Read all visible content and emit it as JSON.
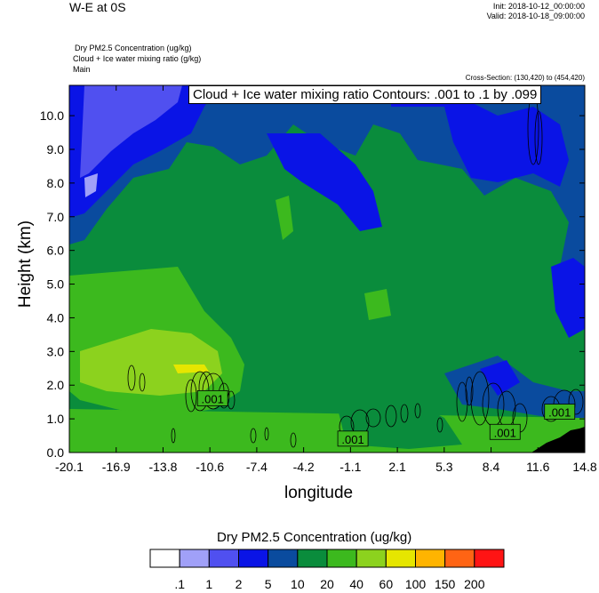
{
  "header": {
    "title": "W-E at 0S",
    "init": "Init: 2018-10-12_00:00:00",
    "valid": "Valid: 2018-10-18_09:00:00",
    "subtitle_1": "Dry PM2.5 Concentration   (ug/kg)",
    "subtitle_2": "Cloud + Ice water mixing ratio   (g/kg)",
    "subtitle_3": "Main",
    "cross_section": "Cross-Section: (130,420) to (454,420)",
    "contour_info": "Cloud + Ice water mixing ratio Contours: .001 to .1 by .099"
  },
  "chart_data": {
    "type": "heatmap",
    "xlabel": "longitude",
    "ylabel": "Height (km)",
    "xlim": [
      -20.1,
      14.8
    ],
    "ylim": [
      0.0,
      10.9
    ],
    "x_ticks": [
      "-20.1",
      "-16.9",
      "-13.8",
      "-10.6",
      "-7.4",
      "-4.2",
      "-1.1",
      "2.1",
      "5.3",
      "8.4",
      "11.6",
      "14.8"
    ],
    "y_ticks": [
      "0.0",
      "1.0",
      "2.0",
      "3.0",
      "4.0",
      "5.0",
      "6.0",
      "7.0",
      "8.0",
      "9.0",
      "10.0"
    ],
    "contour_labels": [
      {
        "text": ".001",
        "lon": -10.4,
        "h": 1.6
      },
      {
        "text": ".001",
        "lon": -0.9,
        "h": 0.4
      },
      {
        "text": ".001",
        "lon": 9.4,
        "h": 0.6
      },
      {
        "text": ".001",
        "lon": 13.1,
        "h": 1.2
      }
    ],
    "colorbar": {
      "title": "Dry PM2.5 Concentration  (ug/kg)",
      "labels": [
        ".1",
        "1",
        "2",
        "5",
        "10",
        "20",
        "40",
        "60",
        "100",
        "150",
        "200"
      ],
      "colors": [
        "#ffffff",
        "#a0a0f8",
        "#5050f0",
        "#0a14e6",
        "#0a4b9e",
        "#0a8c3c",
        "#3cb91e",
        "#8cd21e",
        "#e6e600",
        "#ffb400",
        "#ff6414",
        "#ff1414"
      ]
    },
    "colors": {
      "blue_light": "#a0a0f8",
      "blue_mid": "#5050f0",
      "blue_dark": "#0a14e6",
      "navy": "#0a4b9e",
      "green_dark": "#0a8c3c",
      "green_mid": "#3cb91e",
      "green_light": "#8cd21e",
      "yellow": "#e6e600",
      "terrain": "#000000"
    }
  }
}
